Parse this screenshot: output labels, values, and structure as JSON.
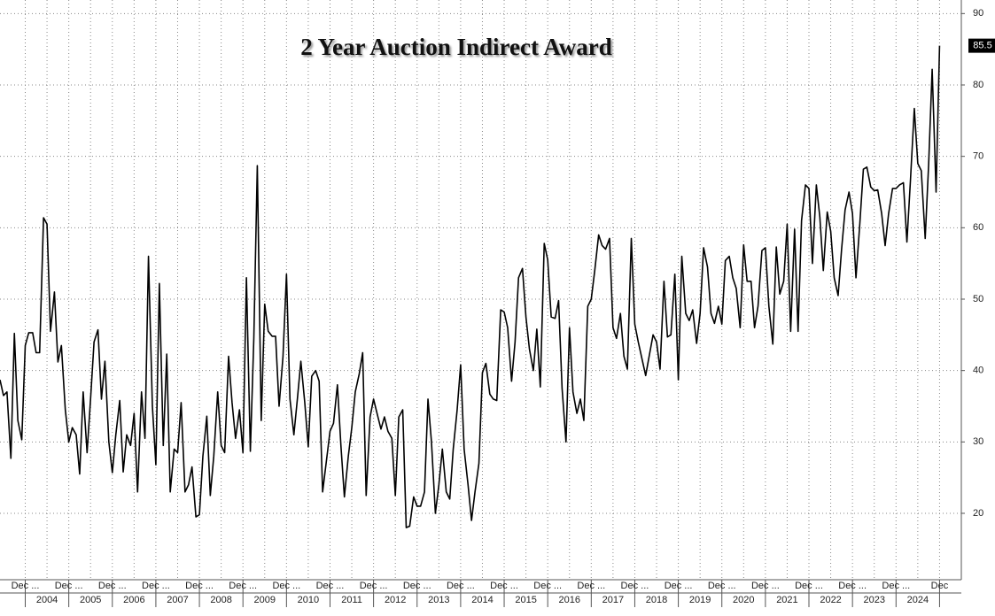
{
  "chart_data": {
    "type": "line",
    "title": "2 Year Auction Indirect Award",
    "color": "#000000",
    "x": [
      2003.42,
      2003.5,
      2003.58,
      2003.67,
      2003.75,
      2003.83,
      2003.92,
      2004,
      2004.08,
      2004.17,
      2004.25,
      2004.33,
      2004.42,
      2004.5,
      2004.58,
      2004.67,
      2004.75,
      2004.83,
      2004.92,
      2005,
      2005.08,
      2005.17,
      2005.25,
      2005.33,
      2005.42,
      2005.5,
      2005.58,
      2005.67,
      2005.75,
      2005.83,
      2005.92,
      2006,
      2006.08,
      2006.17,
      2006.25,
      2006.33,
      2006.42,
      2006.5,
      2006.58,
      2006.67,
      2006.75,
      2006.83,
      2006.92,
      2007,
      2007.08,
      2007.17,
      2007.25,
      2007.33,
      2007.42,
      2007.5,
      2007.58,
      2007.67,
      2007.75,
      2007.83,
      2007.92,
      2008,
      2008.08,
      2008.17,
      2008.25,
      2008.33,
      2008.42,
      2008.5,
      2008.58,
      2008.67,
      2008.75,
      2008.83,
      2008.92,
      2009,
      2009.08,
      2009.17,
      2009.25,
      2009.33,
      2009.42,
      2009.5,
      2009.58,
      2009.67,
      2009.75,
      2009.83,
      2009.92,
      2010,
      2010.08,
      2010.17,
      2010.25,
      2010.33,
      2010.42,
      2010.5,
      2010.58,
      2010.67,
      2010.75,
      2010.83,
      2010.92,
      2011,
      2011.08,
      2011.17,
      2011.25,
      2011.33,
      2011.42,
      2011.5,
      2011.58,
      2011.67,
      2011.75,
      2011.83,
      2011.92,
      2012,
      2012.08,
      2012.17,
      2012.25,
      2012.33,
      2012.42,
      2012.5,
      2012.58,
      2012.67,
      2012.75,
      2012.83,
      2012.92,
      2013,
      2013.08,
      2013.17,
      2013.25,
      2013.33,
      2013.42,
      2013.5,
      2013.58,
      2013.67,
      2013.75,
      2013.83,
      2013.92,
      2014,
      2014.08,
      2014.17,
      2014.25,
      2014.33,
      2014.42,
      2014.5,
      2014.58,
      2014.67,
      2014.75,
      2014.83,
      2014.92,
      2015,
      2015.08,
      2015.17,
      2015.25,
      2015.33,
      2015.42,
      2015.5,
      2015.58,
      2015.67,
      2015.75,
      2015.83,
      2015.92,
      2016,
      2016.08,
      2016.17,
      2016.25,
      2016.33,
      2016.42,
      2016.5,
      2016.58,
      2016.67,
      2016.75,
      2016.83,
      2016.92,
      2017,
      2017.08,
      2017.17,
      2017.25,
      2017.33,
      2017.42,
      2017.5,
      2017.58,
      2017.67,
      2017.75,
      2017.83,
      2017.92,
      2018,
      2018.08,
      2018.17,
      2018.25,
      2018.33,
      2018.42,
      2018.5,
      2018.58,
      2018.67,
      2018.75,
      2018.83,
      2018.92,
      2019,
      2019.08,
      2019.17,
      2019.25,
      2019.33,
      2019.42,
      2019.5,
      2019.58,
      2019.67,
      2019.75,
      2019.83,
      2019.92,
      2020,
      2020.08,
      2020.17,
      2020.25,
      2020.33,
      2020.42,
      2020.5,
      2020.58,
      2020.67,
      2020.75,
      2020.83,
      2020.92,
      2021,
      2021.08,
      2021.17,
      2021.25,
      2021.33,
      2021.42,
      2021.5,
      2021.58,
      2021.67,
      2021.75,
      2021.83,
      2021.92,
      2022,
      2022.08,
      2022.17,
      2022.25,
      2022.33,
      2022.42,
      2022.5,
      2022.58,
      2022.67,
      2022.75,
      2022.83,
      2022.92,
      2023,
      2023.08,
      2023.17,
      2023.25,
      2023.33,
      2023.42,
      2023.5,
      2023.58,
      2023.67,
      2023.75,
      2023.83,
      2023.92,
      2024,
      2024.08,
      2024.17,
      2024.25,
      2024.33,
      2024.42,
      2024.5,
      2024.58,
      2024.67,
      2024.75,
      2024.83,
      2024.92,
      2025
    ],
    "values": [
      38.7,
      36.5,
      37,
      27.7,
      45.2,
      33,
      30.3,
      43.5,
      45.3,
      45.3,
      42.5,
      42.5,
      61.4,
      60.5,
      45.5,
      51,
      41.2,
      43.5,
      34.5,
      30,
      32,
      31,
      25.5,
      37,
      28.5,
      36,
      44,
      45.7,
      36,
      41.3,
      30,
      25.7,
      31,
      35.8,
      25.8,
      31,
      29.5,
      34,
      23,
      37,
      30.5,
      56,
      35,
      26.8,
      52.2,
      29.5,
      42.3,
      23,
      29,
      28.5,
      35.5,
      23,
      24,
      26.5,
      19.5,
      19.8,
      28,
      33.6,
      22.5,
      28,
      37,
      29.5,
      28.5,
      42,
      35.5,
      30.5,
      34.5,
      28.5,
      53,
      28.7,
      44.5,
      68.7,
      33,
      49.3,
      45.5,
      44.8,
      44.8,
      35,
      42,
      53.5,
      36,
      31,
      36,
      41.3,
      35.5,
      29.3,
      39.2,
      40,
      38.5,
      23,
      27.5,
      31.5,
      32.6,
      38,
      29.5,
      22.3,
      28,
      32,
      37,
      39.5,
      42.5,
      22.5,
      33.5,
      36,
      34,
      31.8,
      33.5,
      31.5,
      30.5,
      22.5,
      33.5,
      34.5,
      18,
      18.2,
      22.3,
      21,
      21,
      23,
      36,
      30,
      20,
      24,
      29,
      23,
      22,
      29,
      34.5,
      40.8,
      29,
      24,
      19,
      23,
      27,
      39.7,
      41,
      36.7,
      36,
      35.8,
      48.5,
      48.2,
      46,
      38.5,
      44,
      53,
      54.3,
      47.5,
      43,
      40,
      45.8,
      37.7,
      57.8,
      55.5,
      47.5,
      47.3,
      49.8,
      37.5,
      30,
      46,
      37,
      34,
      36,
      33,
      49,
      50,
      54,
      59,
      57.5,
      57,
      58.5,
      46,
      44.5,
      48,
      42,
      40.2,
      58.5,
      46.5,
      44,
      41.5,
      39.3,
      42,
      45,
      44,
      40.2,
      52.5,
      44.7,
      45,
      53.5,
      38.7,
      56,
      48,
      47,
      48.5,
      43.8,
      48,
      57.2,
      54.5,
      48,
      46.6,
      49,
      46.5,
      55.4,
      56,
      53,
      51.5,
      46,
      57.6,
      52.5,
      52.5,
      46,
      49,
      56.8,
      57.2,
      49,
      43.7,
      57.3,
      50.7,
      52.5,
      60.5,
      45.5,
      59.8,
      45.5,
      61,
      66,
      65.5,
      55,
      66,
      61.5,
      54,
      62.2,
      59.5,
      53,
      50.5,
      57,
      62.5,
      65,
      62,
      53,
      60.7,
      68.2,
      68.5,
      65.7,
      65.2,
      65.3,
      62,
      57.5,
      62,
      65.5,
      65.5,
      66,
      66.3,
      58,
      66.5,
      76.7,
      69,
      68,
      58.5,
      69,
      82.2,
      65,
      85.5
    ],
    "xlim": [
      2003.42,
      2025.5
    ],
    "xticks": [
      {
        "value": 2004,
        "label": "Dec ..."
      },
      {
        "value": 2005,
        "label": "Dec ..."
      },
      {
        "value": 2006,
        "label": "Dec ..."
      },
      {
        "value": 2007,
        "label": "Dec ..."
      },
      {
        "value": 2008,
        "label": "Dec ..."
      },
      {
        "value": 2009,
        "label": "Dec ..."
      },
      {
        "value": 2010,
        "label": "Dec ..."
      },
      {
        "value": 2011,
        "label": "Dec ..."
      },
      {
        "value": 2012,
        "label": "Dec ..."
      },
      {
        "value": 2013,
        "label": "Dec ..."
      },
      {
        "value": 2014,
        "label": "Dec ..."
      },
      {
        "value": 2015,
        "label": "Dec ..."
      },
      {
        "value": 2016,
        "label": "Dec ..."
      },
      {
        "value": 2017,
        "label": "Dec ..."
      },
      {
        "value": 2018,
        "label": "Dec ..."
      },
      {
        "value": 2019,
        "label": "Dec ..."
      },
      {
        "value": 2020,
        "label": "Dec ..."
      },
      {
        "value": 2021,
        "label": "Dec ..."
      },
      {
        "value": 2022,
        "label": "Dec ..."
      },
      {
        "value": 2023,
        "label": "Dec ..."
      },
      {
        "value": 2024,
        "label": "Dec ..."
      },
      {
        "value": 2025,
        "label": "Dec"
      }
    ],
    "year_labels": [
      {
        "value": 2004.5,
        "label": "2004"
      },
      {
        "value": 2005.5,
        "label": "2005"
      },
      {
        "value": 2006.5,
        "label": "2006"
      },
      {
        "value": 2007.5,
        "label": "2007"
      },
      {
        "value": 2008.5,
        "label": "2008"
      },
      {
        "value": 2009.5,
        "label": "2009"
      },
      {
        "value": 2010.5,
        "label": "2010"
      },
      {
        "value": 2011.5,
        "label": "2011"
      },
      {
        "value": 2012.5,
        "label": "2012"
      },
      {
        "value": 2013.5,
        "label": "2013"
      },
      {
        "value": 2014.5,
        "label": "2014"
      },
      {
        "value": 2015.5,
        "label": "2015"
      },
      {
        "value": 2016.5,
        "label": "2016"
      },
      {
        "value": 2017.5,
        "label": "2017"
      },
      {
        "value": 2018.5,
        "label": "2018"
      },
      {
        "value": 2019.5,
        "label": "2019"
      },
      {
        "value": 2020.5,
        "label": "2020"
      },
      {
        "value": 2021.5,
        "label": "2021"
      },
      {
        "value": 2022.5,
        "label": "2022"
      },
      {
        "value": 2023.5,
        "label": "2023"
      },
      {
        "value": 2024.5,
        "label": "2024"
      }
    ],
    "ylim": [
      10.7,
      91.9
    ],
    "yticks": [
      20,
      30,
      40,
      50,
      60,
      70,
      80,
      90
    ],
    "grid": true
  }
}
